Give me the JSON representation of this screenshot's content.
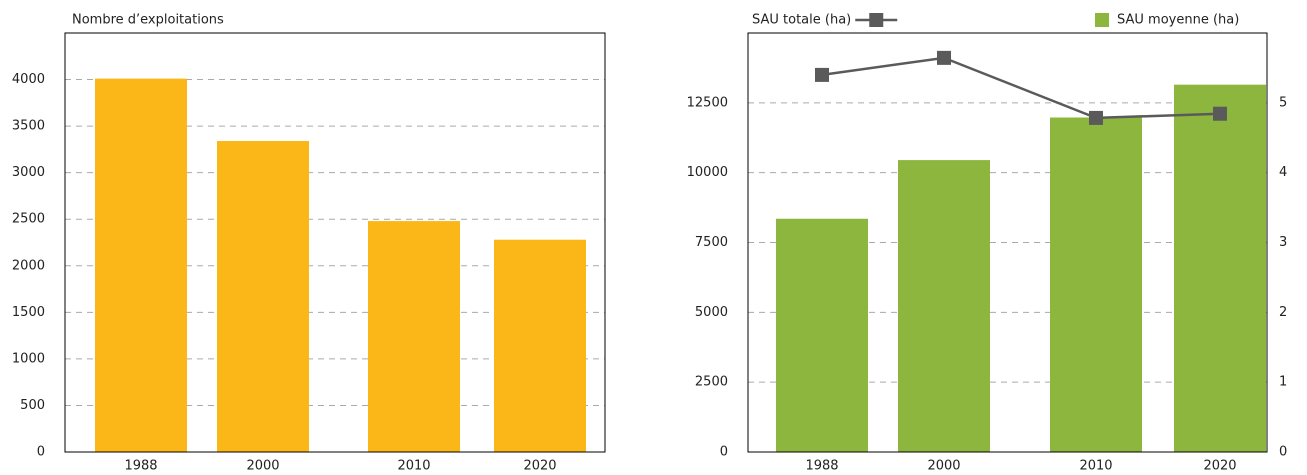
{
  "chart_data": [
    {
      "type": "bar",
      "ylabel": "Nombre d’exploitations",
      "categories": [
        "1988",
        "2000",
        "2010",
        "2020"
      ],
      "values": [
        4010,
        3340,
        2480,
        2280
      ],
      "color": "#fbb718",
      "ylim": [
        0,
        4500
      ],
      "yticks": [
        0,
        500,
        1000,
        1500,
        2000,
        2500,
        3000,
        3500,
        4000
      ],
      "grid": true
    },
    {
      "type": "combo",
      "categories": [
        "1988",
        "2000",
        "2010",
        "2020"
      ],
      "series": [
        {
          "name": "SAU totale (ha)",
          "type": "line",
          "color": "#5a5a5a",
          "values": [
            13500,
            14110,
            11960,
            12110
          ]
        },
        {
          "name": "SAU moyenne (ha)",
          "type": "bar",
          "axis": "y2",
          "color": "#8db63f",
          "values": [
            3.34,
            4.18,
            4.79,
            5.26
          ]
        }
      ],
      "ylim": [
        0,
        15000
      ],
      "yticks": [
        0,
        2500,
        5000,
        7500,
        10000,
        12500
      ],
      "y2lim": [
        0,
        6
      ],
      "y2ticks": [
        0,
        1,
        2,
        3,
        4,
        5
      ],
      "grid": true
    }
  ]
}
